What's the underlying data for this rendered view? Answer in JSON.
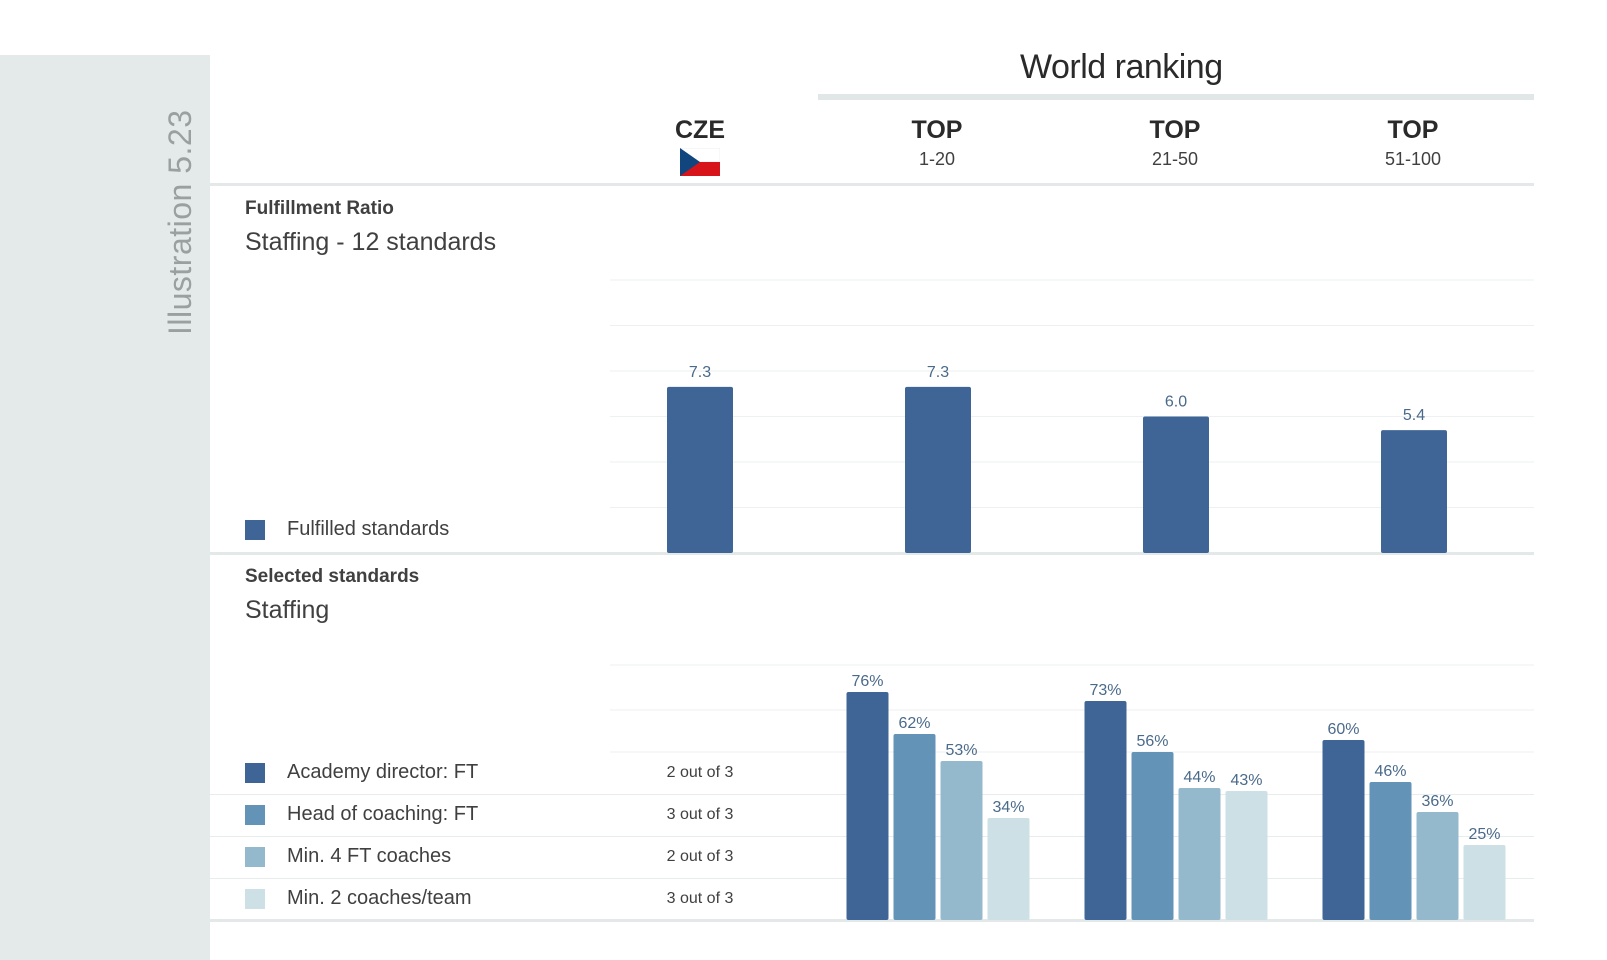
{
  "sidebar": {
    "label": "Illustration 5.23"
  },
  "header": {
    "world_ranking": "World ranking",
    "columns": [
      {
        "main": "CZE",
        "sub": ""
      },
      {
        "main": "TOP",
        "sub": "1-20"
      },
      {
        "main": "TOP",
        "sub": "21-50"
      },
      {
        "main": "TOP",
        "sub": "51-100"
      }
    ]
  },
  "colors": {
    "dark": "#3f6596",
    "mid": "#6393b6",
    "light": "#94b9cc",
    "pale": "#cde0e6",
    "sidebar": "#e4eaea",
    "flag_red": "#d7141a",
    "flag_blue": "#11457e"
  },
  "section1": {
    "kicker": "Fulfillment Ratio",
    "title": "Staffing - 12 standards",
    "legend": "Fulfilled standards"
  },
  "section2": {
    "kicker": "Selected standards",
    "title": "Staffing",
    "rows": [
      {
        "label": "Academy director: FT",
        "note": "2 out of 3"
      },
      {
        "label": "Head of coaching: FT",
        "note": "3 out of 3"
      },
      {
        "label": "Min. 4 FT coaches",
        "note": "2 out of 3"
      },
      {
        "label": "Min. 2 coaches/team",
        "note": "3 out of 3"
      }
    ]
  },
  "chart_data": [
    {
      "type": "bar",
      "categories": [
        "CZE",
        "TOP 1-20",
        "TOP 21-50",
        "TOP 51-100"
      ],
      "series": [
        {
          "name": "Fulfilled standards",
          "values": [
            7.3,
            7.3,
            6.0,
            5.4
          ]
        }
      ],
      "value_labels": [
        "7.3",
        "7.3",
        "6.0",
        "5.4"
      ],
      "ylim": [
        0,
        12
      ]
    },
    {
      "type": "bar",
      "categories": [
        "TOP 1-20",
        "TOP 21-50",
        "TOP 51-100"
      ],
      "series": [
        {
          "name": "Academy director: FT",
          "values": [
            76,
            73,
            60
          ],
          "labels": [
            "76%",
            "73%",
            "60%"
          ]
        },
        {
          "name": "Head of coaching: FT",
          "values": [
            62,
            56,
            46
          ],
          "labels": [
            "62%",
            "56%",
            "46%"
          ]
        },
        {
          "name": "Min. 4 FT coaches",
          "values": [
            53,
            44,
            36
          ],
          "labels": [
            "53%",
            "44%",
            "36%"
          ]
        },
        {
          "name": "Min. 2 coaches/team",
          "values": [
            34,
            43,
            25
          ],
          "labels": [
            "34%",
            "43%",
            "25%"
          ]
        }
      ],
      "ylim": [
        0,
        100
      ]
    }
  ]
}
